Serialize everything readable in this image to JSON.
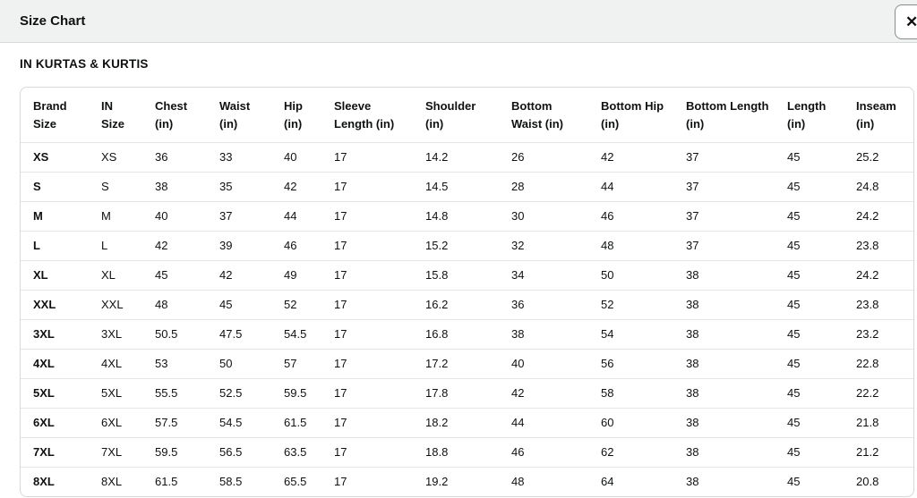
{
  "modal": {
    "title": "Size Chart",
    "close_label": "✕"
  },
  "section_title": "IN KURTAS & KURTIS",
  "size_table": {
    "columns": [
      "Brand Size",
      "IN Size",
      "Chest (in)",
      "Waist (in)",
      "Hip (in)",
      "Sleeve Length (in)",
      "Shoulder (in)",
      "Bottom Waist (in)",
      "Bottom Hip (in)",
      "Bottom Length (in)",
      "Length (in)",
      "Inseam (in)"
    ],
    "rows": [
      [
        "XS",
        "XS",
        "36",
        "33",
        "40",
        "17",
        "14.2",
        "26",
        "42",
        "37",
        "45",
        "25.2"
      ],
      [
        "S",
        "S",
        "38",
        "35",
        "42",
        "17",
        "14.5",
        "28",
        "44",
        "37",
        "45",
        "24.8"
      ],
      [
        "M",
        "M",
        "40",
        "37",
        "44",
        "17",
        "14.8",
        "30",
        "46",
        "37",
        "45",
        "24.2"
      ],
      [
        "L",
        "L",
        "42",
        "39",
        "46",
        "17",
        "15.2",
        "32",
        "48",
        "37",
        "45",
        "23.8"
      ],
      [
        "XL",
        "XL",
        "45",
        "42",
        "49",
        "17",
        "15.8",
        "34",
        "50",
        "38",
        "45",
        "24.2"
      ],
      [
        "XXL",
        "XXL",
        "48",
        "45",
        "52",
        "17",
        "16.2",
        "36",
        "52",
        "38",
        "45",
        "23.8"
      ],
      [
        "3XL",
        "3XL",
        "50.5",
        "47.5",
        "54.5",
        "17",
        "16.8",
        "38",
        "54",
        "38",
        "45",
        "23.2"
      ],
      [
        "4XL",
        "4XL",
        "53",
        "50",
        "57",
        "17",
        "17.2",
        "40",
        "56",
        "38",
        "45",
        "22.8"
      ],
      [
        "5XL",
        "5XL",
        "55.5",
        "52.5",
        "59.5",
        "17",
        "17.8",
        "42",
        "58",
        "38",
        "45",
        "22.2"
      ],
      [
        "6XL",
        "6XL",
        "57.5",
        "54.5",
        "61.5",
        "17",
        "18.2",
        "44",
        "60",
        "38",
        "45",
        "21.8"
      ],
      [
        "7XL",
        "7XL",
        "59.5",
        "56.5",
        "63.5",
        "17",
        "18.8",
        "46",
        "62",
        "38",
        "45",
        "21.2"
      ],
      [
        "8XL",
        "8XL",
        "61.5",
        "58.5",
        "65.5",
        "17",
        "19.2",
        "48",
        "64",
        "38",
        "45",
        "20.8"
      ]
    ]
  },
  "colors": {
    "header_bar_bg": "#f0f2f2",
    "border": "#d5d9d9",
    "row_divider": "#e3e6e6",
    "text": "#0f1111"
  }
}
